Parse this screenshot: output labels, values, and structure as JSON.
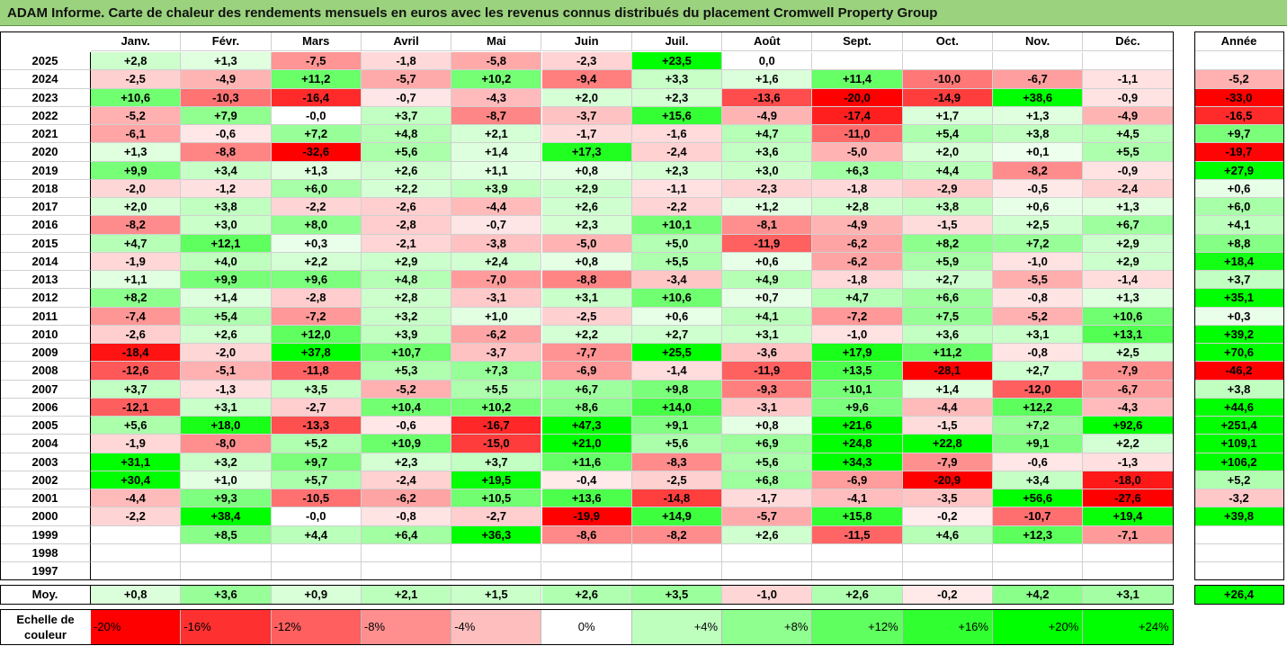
{
  "title": "ADAM Informe. Carte de chaleur des rendements mensuels en euros avec les revenus connus distribués du placement Cromwell Property Group",
  "chart_data": {
    "type": "heatmap",
    "columns": [
      "Janv.",
      "Févr.",
      "Mars",
      "Avril",
      "Mai",
      "Juin",
      "Juil.",
      "Août",
      "Sept.",
      "Oct.",
      "Nov.",
      "Déc."
    ],
    "annual_header": "Année",
    "rows": [
      {
        "year": "2025",
        "months": [
          "+2,8",
          "+1,3",
          "-7,5",
          "-1,8",
          "-5,8",
          "-2,3",
          "+23,5",
          "0,0",
          "",
          "",
          "",
          ""
        ],
        "annual": ""
      },
      {
        "year": "2024",
        "months": [
          "-2,5",
          "-4,9",
          "+11,2",
          "-5,7",
          "+10,2",
          "-9,4",
          "+3,3",
          "+1,6",
          "+11,4",
          "-10,0",
          "-6,7",
          "-1,1"
        ],
        "annual": "-5,2"
      },
      {
        "year": "2023",
        "months": [
          "+10,6",
          "-10,3",
          "-16,4",
          "-0,7",
          "-4,3",
          "+2,0",
          "+2,3",
          "-13,6",
          "-20,0",
          "-14,9",
          "+38,6",
          "-0,9"
        ],
        "annual": "-33,0"
      },
      {
        "year": "2022",
        "months": [
          "-5,2",
          "+7,9",
          "-0,0",
          "+3,7",
          "-8,7",
          "-3,7",
          "+15,6",
          "-4,9",
          "-17,4",
          "+1,7",
          "+1,3",
          "-4,9"
        ],
        "annual": "-16,5"
      },
      {
        "year": "2021",
        "months": [
          "-6,1",
          "-0,6",
          "+7,2",
          "+4,8",
          "+2,1",
          "-1,7",
          "-1,6",
          "+4,7",
          "-11,0",
          "+5,4",
          "+3,8",
          "+4,5"
        ],
        "annual": "+9,7"
      },
      {
        "year": "2020",
        "months": [
          "+1,3",
          "-8,8",
          "-32,6",
          "+5,6",
          "+1,4",
          "+17,3",
          "-2,4",
          "+3,6",
          "-5,0",
          "+2,0",
          "+0,1",
          "+5,5"
        ],
        "annual": "-19,7"
      },
      {
        "year": "2019",
        "months": [
          "+9,9",
          "+3,4",
          "+1,3",
          "+2,6",
          "+1,1",
          "+0,8",
          "+2,3",
          "+3,0",
          "+6,3",
          "+4,4",
          "-8,2",
          "-0,9"
        ],
        "annual": "+27,9"
      },
      {
        "year": "2018",
        "months": [
          "-2,0",
          "-1,2",
          "+6,0",
          "+2,2",
          "+3,9",
          "+2,9",
          "-1,1",
          "-2,3",
          "-1,8",
          "-2,9",
          "-0,5",
          "-2,4"
        ],
        "annual": "+0,6"
      },
      {
        "year": "2017",
        "months": [
          "+2,0",
          "+3,8",
          "-2,2",
          "-2,6",
          "-4,4",
          "+2,6",
          "-2,2",
          "+1,2",
          "+2,8",
          "+3,8",
          "+0,6",
          "+1,3"
        ],
        "annual": "+6,0"
      },
      {
        "year": "2016",
        "months": [
          "-8,2",
          "+3,0",
          "+8,0",
          "-2,8",
          "-0,7",
          "+2,3",
          "+10,1",
          "-8,1",
          "-4,9",
          "-1,5",
          "+2,5",
          "+6,7"
        ],
        "annual": "+4,1"
      },
      {
        "year": "2015",
        "months": [
          "+4,7",
          "+12,1",
          "+0,3",
          "-2,1",
          "-3,8",
          "-5,0",
          "+5,0",
          "-11,9",
          "-6,2",
          "+8,2",
          "+7,2",
          "+2,9"
        ],
        "annual": "+8,8"
      },
      {
        "year": "2014",
        "months": [
          "-1,9",
          "+4,0",
          "+2,2",
          "+2,9",
          "+2,4",
          "+0,8",
          "+5,5",
          "+0,6",
          "-6,2",
          "+5,9",
          "-1,0",
          "+2,9"
        ],
        "annual": "+18,4"
      },
      {
        "year": "2013",
        "months": [
          "+1,1",
          "+9,9",
          "+9,6",
          "+4,8",
          "-7,0",
          "-8,8",
          "-3,4",
          "+4,9",
          "-1,8",
          "+2,7",
          "-5,5",
          "-1,4"
        ],
        "annual": "+3,7"
      },
      {
        "year": "2012",
        "months": [
          "+8,2",
          "+1,4",
          "-2,8",
          "+2,8",
          "-3,1",
          "+3,1",
          "+10,6",
          "+0,7",
          "+4,7",
          "+6,6",
          "-0,8",
          "+1,3"
        ],
        "annual": "+35,1"
      },
      {
        "year": "2011",
        "months": [
          "-7,4",
          "+5,4",
          "-7,2",
          "+3,2",
          "+1,0",
          "-2,5",
          "+0,6",
          "+4,1",
          "-7,2",
          "+7,5",
          "-5,2",
          "+10,6"
        ],
        "annual": "+0,3"
      },
      {
        "year": "2010",
        "months": [
          "-2,6",
          "+2,6",
          "+12,0",
          "+3,9",
          "-6,2",
          "+2,2",
          "+2,7",
          "+3,1",
          "-1,0",
          "+3,6",
          "+3,1",
          "+13,1"
        ],
        "annual": "+39,2"
      },
      {
        "year": "2009",
        "months": [
          "-18,4",
          "-2,0",
          "+37,8",
          "+10,7",
          "-3,7",
          "-7,7",
          "+25,5",
          "-3,6",
          "+17,9",
          "+11,2",
          "-0,8",
          "+2,5"
        ],
        "annual": "+70,6"
      },
      {
        "year": "2008",
        "months": [
          "-12,6",
          "-5,1",
          "-11,8",
          "+5,3",
          "+7,3",
          "-6,9",
          "-1,4",
          "-11,9",
          "+13,5",
          "-28,1",
          "+2,7",
          "-7,9"
        ],
        "annual": "-46,2"
      },
      {
        "year": "2007",
        "months": [
          "+3,7",
          "-1,3",
          "+3,5",
          "-5,2",
          "+5,5",
          "+6,7",
          "+9,8",
          "-9,3",
          "+10,1",
          "+1,4",
          "-12,0",
          "-6,7"
        ],
        "annual": "+3,8"
      },
      {
        "year": "2006",
        "months": [
          "-12,1",
          "+3,1",
          "-2,7",
          "+10,4",
          "+10,2",
          "+8,6",
          "+14,0",
          "-3,1",
          "+9,6",
          "-4,4",
          "+12,2",
          "-4,3"
        ],
        "annual": "+44,6"
      },
      {
        "year": "2005",
        "months": [
          "+5,6",
          "+18,0",
          "-13,3",
          "-0,6",
          "-16,7",
          "+47,3",
          "+9,1",
          "+0,8",
          "+21,6",
          "-1,5",
          "+7,2",
          "+92,6"
        ],
        "annual": "+251,4"
      },
      {
        "year": "2004",
        "months": [
          "-1,9",
          "-8,0",
          "+5,2",
          "+10,9",
          "-15,0",
          "+21,0",
          "+5,6",
          "+6,9",
          "+24,8",
          "+22,8",
          "+9,1",
          "+2,2"
        ],
        "annual": "+109,1"
      },
      {
        "year": "2003",
        "months": [
          "+31,1",
          "+3,2",
          "+9,7",
          "+2,3",
          "+3,7",
          "+11,6",
          "-8,3",
          "+5,6",
          "+34,3",
          "-7,9",
          "-0,6",
          "-1,3"
        ],
        "annual": "+106,2"
      },
      {
        "year": "2002",
        "months": [
          "+30,4",
          "+1,0",
          "+5,7",
          "-2,4",
          "+19,5",
          "-0,4",
          "-2,5",
          "+6,8",
          "-6,9",
          "-20,9",
          "+3,4",
          "-18,0"
        ],
        "annual": "+5,2"
      },
      {
        "year": "2001",
        "months": [
          "-4,4",
          "+9,3",
          "-10,5",
          "-6,2",
          "+10,5",
          "+13,6",
          "-14,8",
          "-1,7",
          "-4,1",
          "-3,5",
          "+56,6",
          "-27,6"
        ],
        "annual": "-3,2"
      },
      {
        "year": "2000",
        "months": [
          "-2,2",
          "+38,4",
          "-0,0",
          "-0,8",
          "-2,7",
          "-19,9",
          "+14,9",
          "-5,7",
          "+15,8",
          "-0,2",
          "-10,7",
          "+19,4"
        ],
        "annual": "+39,8"
      },
      {
        "year": "1999",
        "months": [
          "",
          "+8,5",
          "+4,4",
          "+6,4",
          "+36,3",
          "-8,6",
          "-8,2",
          "+2,6",
          "-11,5",
          "+4,6",
          "+12,3",
          "-7,1"
        ],
        "annual": ""
      },
      {
        "year": "1998",
        "months": [
          "",
          "",
          "",
          "",
          "",
          "",
          "",
          "",
          "",
          "",
          "",
          ""
        ],
        "annual": ""
      },
      {
        "year": "1997",
        "months": [
          "",
          "",
          "",
          "",
          "",
          "",
          "",
          "",
          "",
          "",
          "",
          ""
        ],
        "annual": ""
      }
    ],
    "average": {
      "label": "Moy.",
      "months": [
        "+0,8",
        "+3,6",
        "+0,9",
        "+2,1",
        "+1,5",
        "+2,6",
        "+3,5",
        "-1,0",
        "+2,6",
        "-0,2",
        "+4,2",
        "+3,1"
      ],
      "annual": "+26,4"
    },
    "scale": {
      "label_line1": "Echelle de",
      "label_line2": "couleur",
      "stops": [
        "-20%",
        "-16%",
        "-12%",
        "-8%",
        "-4%",
        "0%",
        "+4%",
        "+8%",
        "+12%",
        "+16%",
        "+20%",
        "+24%"
      ],
      "values": [
        -20,
        -16,
        -12,
        -8,
        -4,
        0,
        4,
        8,
        12,
        16,
        20,
        24
      ]
    },
    "colors": {
      "title_bg": "#9bd27d",
      "negative_max": "#ff0000",
      "positive_max": "#00ff00",
      "neutral": "#ffffff"
    }
  }
}
